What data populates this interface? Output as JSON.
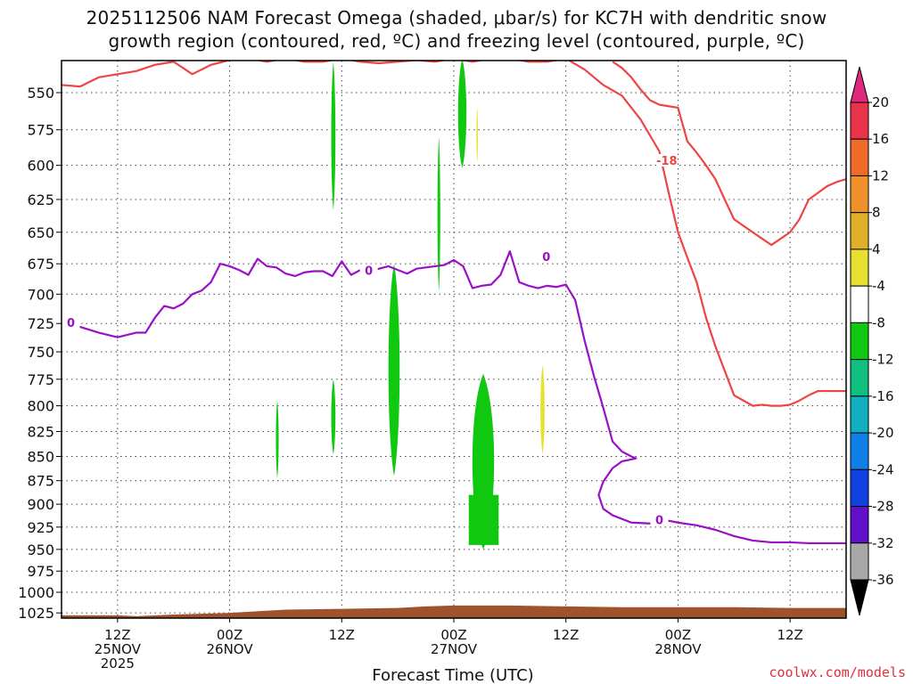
{
  "title_line1": "2025112506 NAM Forecast Omega (shaded, μbar/s) for KC7H with dendritic snow",
  "title_line2": "growth region (contoured, red, ºC) and freezing level (contoured, purple, ºC)",
  "credit": "coolwx.com/models",
  "chart_data": {
    "type": "time-height",
    "title": "2025112506 NAM Forecast Omega (shaded, μbar/s) for KC7H with dendritic snow growth region (contoured, red, ºC) and freezing level (contoured, purple, ºC)",
    "xlabel": "Forecast Time (UTC)",
    "ylabel": "",
    "y_ticks": [
      550,
      575,
      600,
      625,
      650,
      675,
      700,
      725,
      750,
      775,
      800,
      825,
      850,
      875,
      900,
      925,
      950,
      975,
      1000,
      1025
    ],
    "y_scale": "log-pressure",
    "ylim": [
      525,
      1035
    ],
    "xlim_hours": [
      6,
      90
    ],
    "x_ticks": [
      {
        "hour": 12,
        "lines": [
          "12Z",
          "25NOV",
          "2025"
        ]
      },
      {
        "hour": 24,
        "lines": [
          "00Z",
          "26NOV"
        ]
      },
      {
        "hour": 36,
        "lines": [
          "12Z"
        ]
      },
      {
        "hour": 48,
        "lines": [
          "00Z",
          "27NOV"
        ]
      },
      {
        "hour": 60,
        "lines": [
          "12Z"
        ]
      },
      {
        "hour": 72,
        "lines": [
          "00Z",
          "28NOV"
        ]
      },
      {
        "hour": 84,
        "lines": [
          "12Z"
        ]
      }
    ],
    "grid": true,
    "colorbar": {
      "labels": [
        "20",
        "16",
        "12",
        "8",
        "4",
        "-4",
        "-8",
        "-12",
        "-16",
        "-20",
        "-24",
        "-28",
        "-32",
        "-36"
      ],
      "colors": [
        "#e8334a",
        "#f06a2a",
        "#f0902a",
        "#e0b028",
        "#e8e030",
        "#ffffff",
        "#10c810",
        "#10c080",
        "#10b0c0",
        "#1080e8",
        "#1040e0",
        "#6010c8",
        "#9010c0",
        "#a8a8a8"
      ],
      "top_arrow_color": "#e0287e",
      "bottom_arrow_color": "#000000"
    },
    "surface_color": "#a0522d",
    "contours": [
      {
        "name": "dendritic snow growth region",
        "color": "#ee4444",
        "label": "-18"
      },
      {
        "name": "freezing level",
        "color": "#9a10c8",
        "label": "0"
      }
    ],
    "freezing_level": {
      "hours": [
        6,
        8,
        10,
        12,
        13,
        14,
        15,
        16,
        17,
        18,
        19,
        20,
        21,
        22,
        23,
        24,
        25,
        26,
        27,
        28,
        29,
        30,
        31,
        32,
        33,
        34,
        35,
        36,
        37,
        38,
        39,
        40,
        41,
        42,
        43,
        44,
        45,
        46,
        47,
        48,
        49,
        50,
        51,
        52,
        53,
        54,
        55,
        56,
        57,
        58,
        59,
        60,
        61,
        62,
        63,
        64,
        65,
        66,
        67,
        67.5,
        67,
        66,
        65,
        64,
        63.5,
        64,
        65,
        67,
        69,
        70,
        71,
        72,
        74,
        76,
        78,
        80,
        82,
        84,
        86,
        88,
        90
      ],
      "pressure": [
        725,
        728,
        733,
        737,
        735,
        733,
        733,
        720,
        710,
        712,
        708,
        700,
        697,
        690,
        675,
        677,
        680,
        684,
        671,
        677,
        678,
        683,
        685,
        682,
        681,
        681,
        685,
        673,
        684,
        680,
        681,
        679,
        677,
        680,
        683,
        679,
        678,
        677,
        676,
        672,
        677,
        695,
        693,
        692,
        684,
        665,
        690,
        693,
        695,
        693,
        694,
        692,
        705,
        740,
        772,
        802,
        835,
        845,
        850,
        852,
        853,
        855,
        862,
        876,
        890,
        905,
        912,
        920,
        921,
        920,
        918,
        920,
        923,
        928,
        935,
        940,
        942,
        942,
        943,
        943,
        943
      ]
    },
    "dgz_contour": {
      "hours": [
        6,
        8,
        10,
        12,
        14,
        16,
        18,
        20,
        22,
        24,
        26,
        28,
        30,
        32,
        34,
        36,
        38,
        40,
        42,
        44,
        46,
        48,
        50,
        52,
        54,
        56,
        58,
        60,
        62,
        64,
        66,
        68,
        70,
        71,
        72,
        73,
        74,
        75,
        76,
        78,
        80,
        81,
        82,
        83,
        84,
        85,
        86,
        87,
        88,
        89,
        90
      ],
      "pressure": [
        545,
        546,
        540,
        538,
        536,
        532,
        530,
        538,
        532,
        529,
        528,
        530,
        528,
        530,
        530,
        528,
        530,
        531,
        530,
        529,
        530,
        528,
        530,
        528,
        528,
        530,
        530,
        528,
        535,
        545,
        552,
        568,
        590,
        620,
        650,
        670,
        690,
        720,
        745,
        790,
        800,
        799,
        800,
        800,
        799,
        795,
        790,
        786,
        786,
        786,
        786
      ]
    },
    "dgz_upper_contour": {
      "hours": [
        65,
        66,
        67,
        68,
        69,
        70,
        71,
        72,
        73,
        74,
        75,
        76,
        77,
        78,
        79,
        80,
        81,
        82,
        83,
        84,
        85,
        86,
        87,
        88,
        89,
        90
      ],
      "pressure": [
        530,
        534,
        540,
        548,
        555,
        558,
        559,
        560,
        583,
        591,
        600,
        610,
        625,
        640,
        645,
        650,
        655,
        660,
        655,
        650,
        640,
        625,
        620,
        615,
        612,
        610
      ]
    },
    "omega_regions": [
      {
        "value_range": [
          -8,
          -4
        ],
        "hours_range": [
          34.8,
          35.4
        ],
        "pressure_range": [
          530,
          633
        ]
      },
      {
        "value_range": [
          -8,
          -4
        ],
        "hours_range": [
          46.2,
          46.6
        ],
        "pressure_range": [
          580,
          698
        ]
      },
      {
        "value_range": [
          -8,
          -4
        ],
        "hours_range": [
          48.3,
          49.5
        ],
        "pressure_range": [
          528,
          602
        ]
      },
      {
        "value_range": [
          -8,
          -4
        ],
        "hours_range": [
          40.8,
          42.4
        ],
        "pressure_range": [
          675,
          870
        ]
      },
      {
        "value_range": [
          -8,
          -4
        ],
        "hours_range": [
          28.9,
          29.3
        ],
        "pressure_range": [
          795,
          872
        ]
      },
      {
        "value_range": [
          -8,
          -4
        ],
        "hours_range": [
          34.8,
          35.4
        ],
        "pressure_range": [
          775,
          848
        ]
      },
      {
        "value_range": [
          -8,
          -4
        ],
        "hours_range": [
          49.6,
          52.7
        ],
        "pressure_range": [
          770,
          950
        ]
      },
      {
        "value_range": [
          4,
          8
        ],
        "hours_range": [
          50.4,
          50.6
        ],
        "pressure_range": [
          560,
          598
        ]
      },
      {
        "value_range": [
          4,
          8
        ],
        "hours_range": [
          57.2,
          57.8
        ],
        "pressure_range": [
          762,
          848
        ]
      }
    ]
  }
}
